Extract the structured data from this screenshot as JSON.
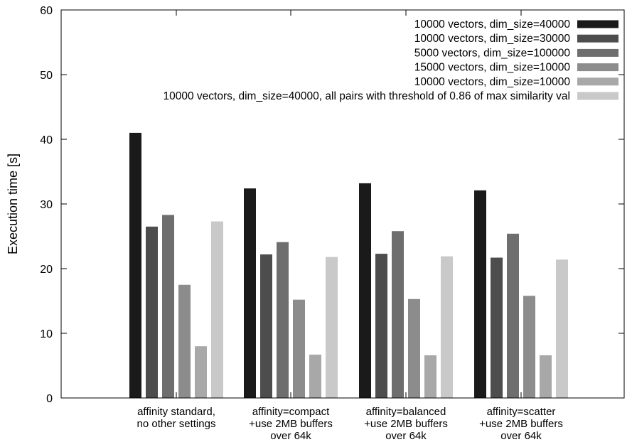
{
  "chart_data": {
    "type": "bar",
    "title": "",
    "xlabel": "",
    "ylabel": "Execution time [s]",
    "ylim": [
      0,
      60
    ],
    "yticks": [
      0,
      10,
      20,
      30,
      40,
      50,
      60
    ],
    "grid": false,
    "legend_position": "top-right",
    "categories": [
      [
        "affinity standard,",
        "no other settings"
      ],
      [
        "affinity=compact",
        "+use 2MB buffers",
        "over 64k"
      ],
      [
        "affinity=balanced",
        "+use 2MB buffers",
        "over 64k"
      ],
      [
        "affinity=scatter",
        "+use 2MB buffers",
        "over 64k"
      ]
    ],
    "series": [
      {
        "name": "10000 vectors, dim_size=40000",
        "color": "#1a1a1a",
        "values": [
          41.0,
          32.4,
          33.2,
          32.1
        ]
      },
      {
        "name": "10000 vectors, dim_size=30000",
        "color": "#4d4d4d",
        "values": [
          26.5,
          22.2,
          22.3,
          21.7
        ]
      },
      {
        "name": "5000 vectors, dim_size=100000",
        "color": "#6e6e6e",
        "values": [
          28.3,
          24.1,
          25.8,
          25.4
        ]
      },
      {
        "name": "15000 vectors, dim_size=10000",
        "color": "#8c8c8c",
        "values": [
          17.5,
          15.2,
          15.3,
          15.8
        ]
      },
      {
        "name": "10000 vectors, dim_size=10000",
        "color": "#a8a8a8",
        "values": [
          8.0,
          6.7,
          6.6,
          6.6
        ]
      },
      {
        "name": "10000 vectors, dim_size=40000, all pairs with threshold of 0.86 of max similarity val",
        "color": "#c9c9c9",
        "values": [
          27.3,
          21.8,
          21.9,
          21.4
        ]
      }
    ]
  }
}
